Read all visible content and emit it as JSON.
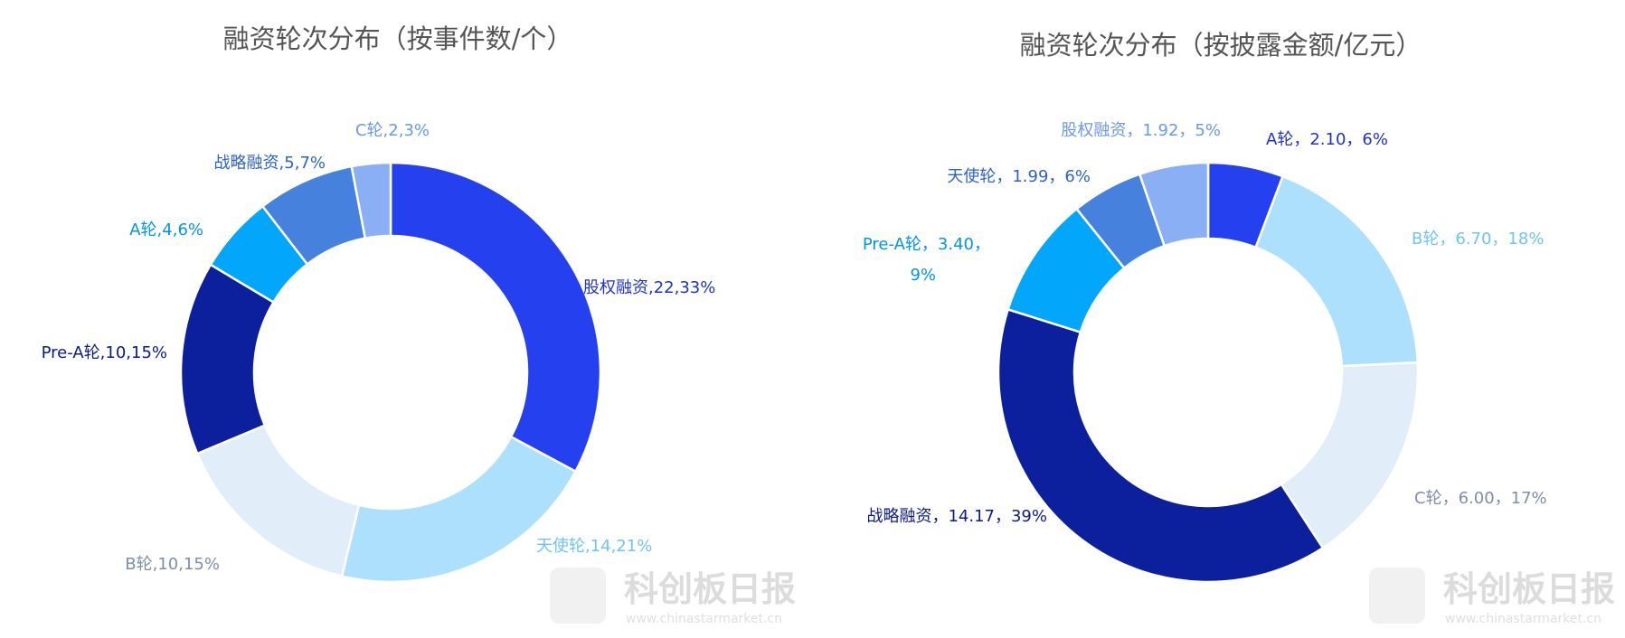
{
  "chart_data": [
    {
      "type": "pie",
      "title": "融资轮次分布（按事件数/个）",
      "slices": [
        {
          "name": "股权融资",
          "value": 22,
          "percent": "33%",
          "label": "股权融资,22,33%",
          "color": "#2540ee",
          "label_color": "#1f33c8"
        },
        {
          "name": "天使轮",
          "value": 14,
          "percent": "21%",
          "label": "天使轮,14,21%",
          "color": "#ade0fd",
          "label_color": "#6fc4f2"
        },
        {
          "name": "B轮",
          "value": 10,
          "percent": "15%",
          "label": "B轮,10,15%",
          "color": "#e2edfa",
          "label_color": "#7f8ea8"
        },
        {
          "name": "Pre-A轮",
          "value": 10,
          "percent": "15%",
          "label": "Pre-A轮,10,15%",
          "color": "#0c1f9d",
          "label_color": "#0b1a86"
        },
        {
          "name": "A轮",
          "value": 4,
          "percent": "6%",
          "label": "A轮,4,6%",
          "color": "#02a6fb",
          "label_color": "#0296e6"
        },
        {
          "name": "战略融资",
          "value": 5,
          "percent": "7%",
          "label": "战略融资,5,7%",
          "color": "#4682dd",
          "label_color": "#2d63c4"
        },
        {
          "name": "C轮",
          "value": 2,
          "percent": "3%",
          "label": "C轮,2,3%",
          "color": "#8aaff5",
          "label_color": "#6a98ea"
        }
      ]
    },
    {
      "type": "pie",
      "title": "融资轮次分布（按披露金额/亿元）",
      "slices": [
        {
          "name": "A轮",
          "value": 2.1,
          "percent": "6%",
          "label": "A轮，2.10，6%",
          "color": "#2540ee",
          "label_color": "#1f33c8"
        },
        {
          "name": "B轮",
          "value": 6.7,
          "percent": "18%",
          "label": "B轮，6.70，18%",
          "color": "#ade0fd",
          "label_color": "#6fc4f2"
        },
        {
          "name": "C轮",
          "value": 6.0,
          "percent": "17%",
          "label": "C轮，6.00，17%",
          "color": "#e2edfa",
          "label_color": "#7f8ea8"
        },
        {
          "name": "战略融资",
          "value": 14.17,
          "percent": "39%",
          "label": "战略融资，14.17，39%",
          "color": "#0c1f9d",
          "label_color": "#0b1a86"
        },
        {
          "name": "Pre-A轮",
          "value": 3.4,
          "percent": "9%",
          "label": "Pre-A轮，3.40，9%",
          "label_lines": [
            "Pre-A轮，3.40，",
            "9%"
          ],
          "color": "#02a6fb",
          "label_color": "#0296e6"
        },
        {
          "name": "天使轮",
          "value": 1.99,
          "percent": "6%",
          "label": "天使轮，1.99，6%",
          "color": "#4682dd",
          "label_color": "#2d63c4"
        },
        {
          "name": "股权融资",
          "value": 1.92,
          "percent": "5%",
          "label": "股权融资，1.92，5%",
          "color": "#8aaff5",
          "label_color": "#6a98ea"
        }
      ]
    }
  ],
  "watermark": {
    "brand": "科创板日报",
    "url": "www.chinastarmarket.cn"
  }
}
